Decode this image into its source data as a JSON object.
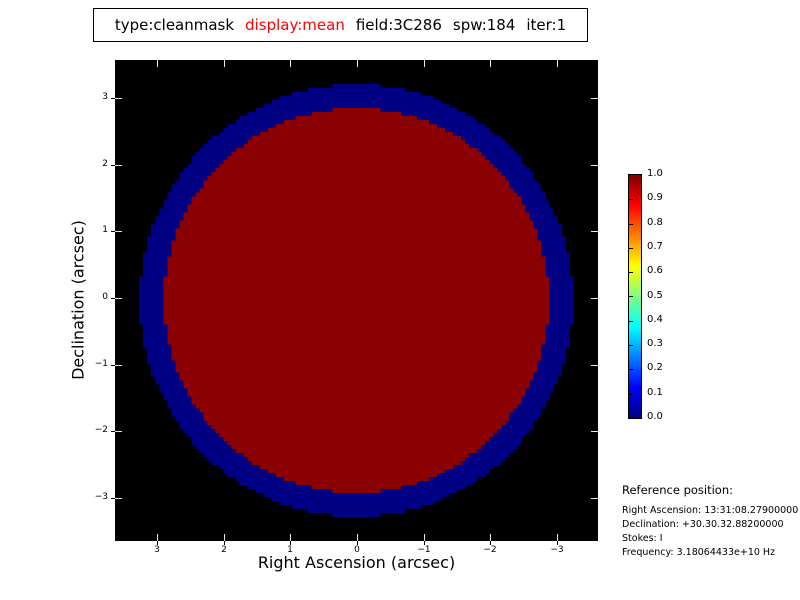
{
  "title": {
    "segments": [
      {
        "text": "type:cleanmask",
        "color": "#000000"
      },
      {
        "text": "display:mean",
        "color": "#ff0000"
      },
      {
        "text": "field:3C286",
        "color": "#000000"
      },
      {
        "text": "spw:184",
        "color": "#000000"
      },
      {
        "text": "iter:1",
        "color": "#000000"
      }
    ]
  },
  "chart_data": {
    "type": "heatmap",
    "title": "type:cleanmask display:mean field:3C286 spw:184 iter:1",
    "xlabel": "Right Ascension (arcsec)",
    "ylabel": "Declination (arcsec)",
    "x_ticks": [
      "3",
      "2",
      "1",
      "0",
      "−1",
      "−2",
      "−3"
    ],
    "y_ticks": [
      "3",
      "2",
      "1",
      "0",
      "−1",
      "−2",
      "−3"
    ],
    "xlim": [
      3.62,
      -3.62
    ],
    "ylim": [
      -3.62,
      3.62
    ],
    "grid": false,
    "background_color": "#000000",
    "mask": {
      "description": "clean mask: dark-red filled circle (value 1.0) surrounded by navy ring (value 0.0) on black background",
      "center_arcsec": [
        0,
        0
      ],
      "outer_circle": {
        "radius_arcsec": 3.25,
        "value": 0.0,
        "color": "#000084"
      },
      "inner_circle": {
        "radius_arcsec": 2.89,
        "value": 1.0,
        "color": "#8b0000"
      },
      "raster_cells": 120
    },
    "colorbar": {
      "colormap": "jet",
      "range": [
        0.0,
        1.0
      ],
      "position": "right",
      "tick_labels": [
        "1.0",
        "0.9",
        "0.8",
        "0.7",
        "0.6",
        "0.5",
        "0.4",
        "0.3",
        "0.2",
        "0.1",
        "0.0"
      ],
      "gradient_stops": [
        {
          "offset": 0.0,
          "color": "#000080"
        },
        {
          "offset": 0.125,
          "color": "#0000ff"
        },
        {
          "offset": 0.375,
          "color": "#00ffff"
        },
        {
          "offset": 0.625,
          "color": "#ffff00"
        },
        {
          "offset": 0.875,
          "color": "#ff0000"
        },
        {
          "offset": 1.0,
          "color": "#800000"
        }
      ]
    }
  },
  "reference": {
    "heading": "Reference position:",
    "lines": [
      "Right Ascension: 13:31:08.27900000",
      "Declination: +30.30.32.88200000",
      "Stokes: I",
      "Frequency: 3.18064433e+10 Hz"
    ]
  }
}
